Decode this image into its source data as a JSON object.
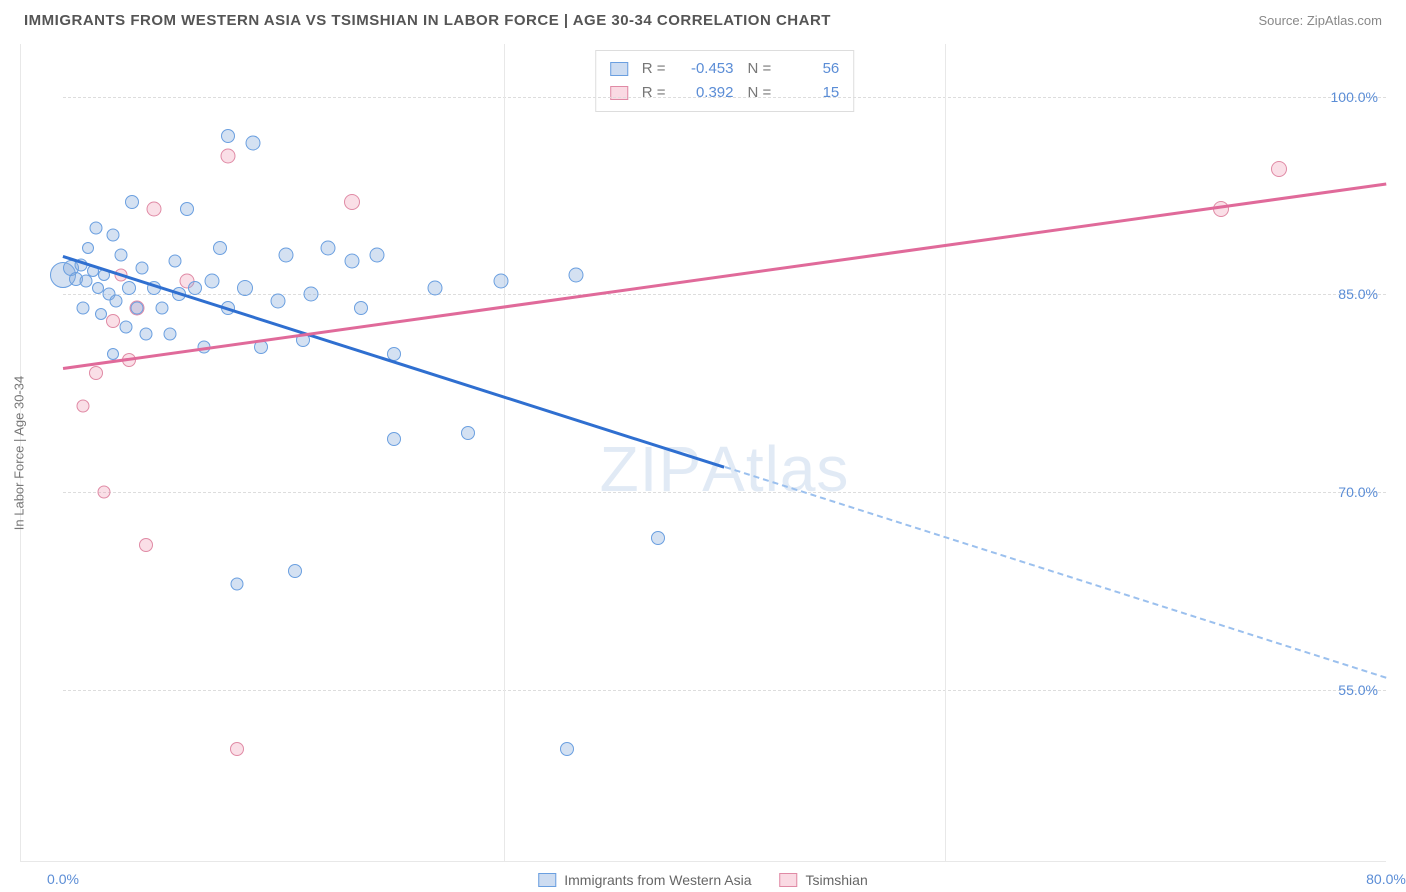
{
  "header": {
    "title": "IMMIGRANTS FROM WESTERN ASIA VS TSIMSHIAN IN LABOR FORCE | AGE 30-34 CORRELATION CHART",
    "source_prefix": "Source: ",
    "source": "ZipAtlas.com"
  },
  "chart": {
    "type": "scatter",
    "y_axis_label": "In Labor Force | Age 30-34",
    "xlim": [
      0,
      80
    ],
    "ylim": [
      42,
      104
    ],
    "xticks": [
      {
        "v": 0,
        "label": "0.0%"
      },
      {
        "v": 80,
        "label": "80.0%"
      }
    ],
    "yticks": [
      {
        "v": 55,
        "label": "55.0%"
      },
      {
        "v": 70,
        "label": "70.0%"
      },
      {
        "v": 85,
        "label": "85.0%"
      },
      {
        "v": 100,
        "label": "100.0%"
      }
    ],
    "grid_color": "#dddddd",
    "background_color": "#ffffff",
    "x_gridlines": [
      0.333,
      0.667
    ],
    "watermark": "ZIPAtlas",
    "correlation_legend": [
      {
        "swatch": "blue",
        "r_label": "R =",
        "r": "-0.453",
        "n_label": "N =",
        "n": "56"
      },
      {
        "swatch": "pink",
        "r_label": "R =",
        "r": "0.392",
        "n_label": "N =",
        "n": "15"
      }
    ],
    "bottom_legend": [
      {
        "swatch": "blue",
        "label": "Immigrants from Western Asia"
      },
      {
        "swatch": "pink",
        "label": "Tsimshian"
      }
    ],
    "series": {
      "blue": {
        "color_fill": "rgba(131,168,219,0.35)",
        "color_stroke": "#6a9fe0",
        "marker_size_default": 15,
        "points": [
          {
            "x": 0.0,
            "y": 86.5,
            "r": 26
          },
          {
            "x": 0.5,
            "y": 87.0,
            "r": 16
          },
          {
            "x": 0.8,
            "y": 86.2,
            "r": 14
          },
          {
            "x": 1.1,
            "y": 87.2,
            "r": 13
          },
          {
            "x": 1.4,
            "y": 86.0,
            "r": 13
          },
          {
            "x": 1.8,
            "y": 86.8,
            "r": 12
          },
          {
            "x": 2.1,
            "y": 85.5,
            "r": 12
          },
          {
            "x": 2.5,
            "y": 86.5,
            "r": 12
          },
          {
            "x": 1.2,
            "y": 84.0,
            "r": 13
          },
          {
            "x": 2.8,
            "y": 85.0,
            "r": 13
          },
          {
            "x": 1.5,
            "y": 88.5,
            "r": 12
          },
          {
            "x": 3.2,
            "y": 84.5,
            "r": 13
          },
          {
            "x": 2.0,
            "y": 90.0,
            "r": 13
          },
          {
            "x": 4.0,
            "y": 85.5,
            "r": 14
          },
          {
            "x": 3.5,
            "y": 88.0,
            "r": 13
          },
          {
            "x": 4.5,
            "y": 84.0,
            "r": 13
          },
          {
            "x": 3.0,
            "y": 89.5,
            "r": 13
          },
          {
            "x": 5.5,
            "y": 85.5,
            "r": 14
          },
          {
            "x": 4.2,
            "y": 92.0,
            "r": 14
          },
          {
            "x": 6.0,
            "y": 84.0,
            "r": 13
          },
          {
            "x": 7.0,
            "y": 85.0,
            "r": 14
          },
          {
            "x": 5.0,
            "y": 82.0,
            "r": 13
          },
          {
            "x": 3.8,
            "y": 82.5,
            "r": 13
          },
          {
            "x": 8.0,
            "y": 85.5,
            "r": 14
          },
          {
            "x": 6.5,
            "y": 82.0,
            "r": 13
          },
          {
            "x": 9.0,
            "y": 86.0,
            "r": 15
          },
          {
            "x": 7.5,
            "y": 91.5,
            "r": 14
          },
          {
            "x": 10.0,
            "y": 84.0,
            "r": 14
          },
          {
            "x": 9.5,
            "y": 88.5,
            "r": 14
          },
          {
            "x": 11.0,
            "y": 85.5,
            "r": 16
          },
          {
            "x": 12.0,
            "y": 81.0,
            "r": 14
          },
          {
            "x": 11.5,
            "y": 96.5,
            "r": 15
          },
          {
            "x": 13.5,
            "y": 88.0,
            "r": 15
          },
          {
            "x": 13.0,
            "y": 84.5,
            "r": 15
          },
          {
            "x": 10.0,
            "y": 97.0,
            "r": 14
          },
          {
            "x": 14.5,
            "y": 81.5,
            "r": 14
          },
          {
            "x": 16.0,
            "y": 88.5,
            "r": 15
          },
          {
            "x": 15.0,
            "y": 85.0,
            "r": 15
          },
          {
            "x": 17.5,
            "y": 87.5,
            "r": 15
          },
          {
            "x": 19.0,
            "y": 88.0,
            "r": 15
          },
          {
            "x": 18.0,
            "y": 84.0,
            "r": 14
          },
          {
            "x": 20.0,
            "y": 80.5,
            "r": 14
          },
          {
            "x": 22.5,
            "y": 85.5,
            "r": 15
          },
          {
            "x": 20.0,
            "y": 74.0,
            "r": 14
          },
          {
            "x": 24.5,
            "y": 74.5,
            "r": 14
          },
          {
            "x": 26.5,
            "y": 86.0,
            "r": 15
          },
          {
            "x": 14.0,
            "y": 64.0,
            "r": 14
          },
          {
            "x": 10.5,
            "y": 63.0,
            "r": 13
          },
          {
            "x": 31.0,
            "y": 86.5,
            "r": 15
          },
          {
            "x": 36.0,
            "y": 66.5,
            "r": 14
          },
          {
            "x": 30.5,
            "y": 50.5,
            "r": 14
          },
          {
            "x": 3.0,
            "y": 80.5,
            "r": 12
          },
          {
            "x": 6.8,
            "y": 87.5,
            "r": 13
          },
          {
            "x": 8.5,
            "y": 81.0,
            "r": 13
          },
          {
            "x": 2.3,
            "y": 83.5,
            "r": 12
          },
          {
            "x": 4.8,
            "y": 87.0,
            "r": 13
          }
        ],
        "trend": {
          "x1": 0,
          "y1": 88.0,
          "x2": 40,
          "y2": 72.0,
          "color": "#2f6fd0",
          "width": 2.5,
          "extrapolate": {
            "x2": 80,
            "y2": 56.0,
            "dash": true
          }
        }
      },
      "pink": {
        "color_fill": "rgba(240,150,175,0.3)",
        "color_stroke": "#e08aa5",
        "marker_size_default": 15,
        "points": [
          {
            "x": 2.0,
            "y": 79.0,
            "r": 14
          },
          {
            "x": 3.0,
            "y": 83.0,
            "r": 14
          },
          {
            "x": 1.2,
            "y": 76.5,
            "r": 13
          },
          {
            "x": 4.5,
            "y": 84.0,
            "r": 15
          },
          {
            "x": 2.5,
            "y": 70.0,
            "r": 13
          },
          {
            "x": 4.0,
            "y": 80.0,
            "r": 14
          },
          {
            "x": 5.5,
            "y": 91.5,
            "r": 15
          },
          {
            "x": 7.5,
            "y": 86.0,
            "r": 15
          },
          {
            "x": 10.0,
            "y": 95.5,
            "r": 15
          },
          {
            "x": 5.0,
            "y": 66.0,
            "r": 14
          },
          {
            "x": 17.5,
            "y": 92.0,
            "r": 16
          },
          {
            "x": 10.5,
            "y": 50.5,
            "r": 14
          },
          {
            "x": 70.0,
            "y": 91.5,
            "r": 16
          },
          {
            "x": 73.5,
            "y": 94.5,
            "r": 16
          },
          {
            "x": 3.5,
            "y": 86.5,
            "r": 13
          }
        ],
        "trend": {
          "x1": 0,
          "y1": 79.5,
          "x2": 80,
          "y2": 93.5,
          "color": "#e06a9a",
          "width": 2.5
        }
      }
    }
  }
}
